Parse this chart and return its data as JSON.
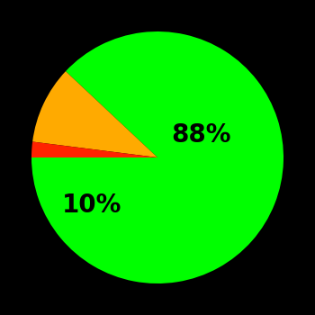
{
  "slices": [
    88,
    10,
    2
  ],
  "colors": [
    "#00ff00",
    "#ffaa00",
    "#ff2200"
  ],
  "labels": [
    "88%",
    "10%",
    ""
  ],
  "background_color": "#000000",
  "label_fontsize": 20,
  "label_fontweight": "bold",
  "startangle": 180,
  "figsize": [
    3.5,
    3.5
  ],
  "dpi": 100
}
